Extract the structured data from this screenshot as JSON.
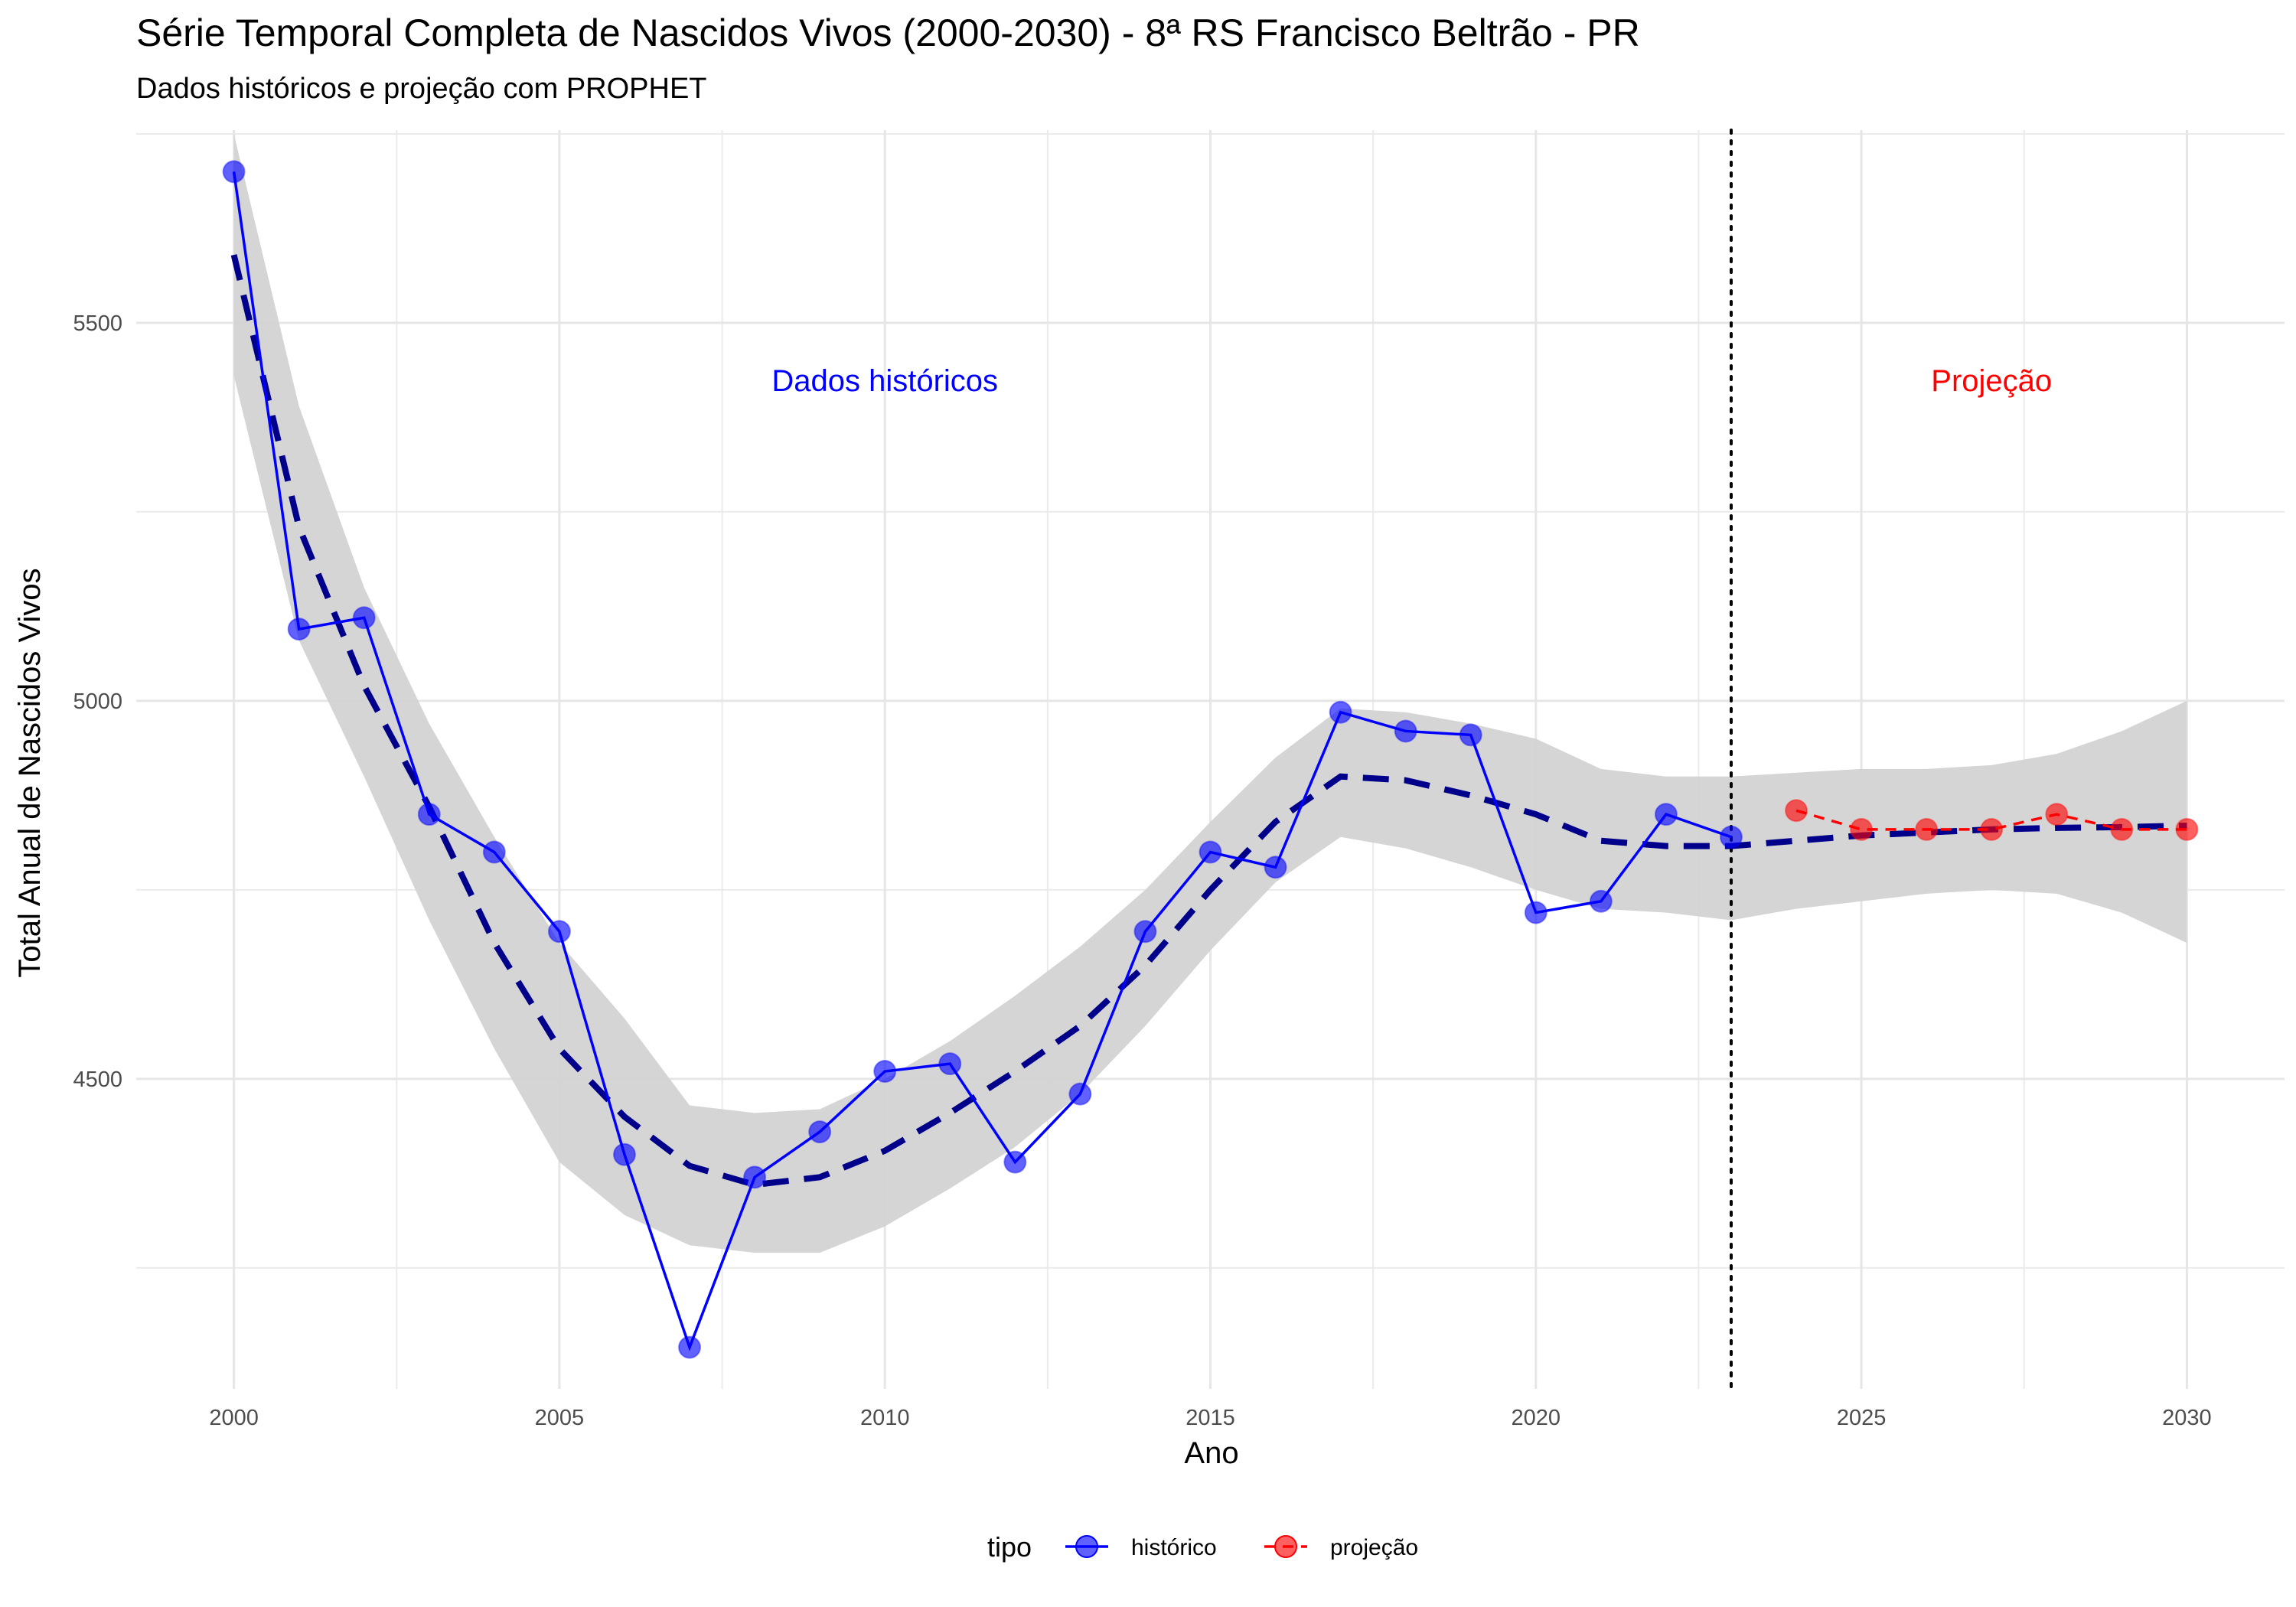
{
  "title": "Série Temporal Completa de Nascidos Vivos (2000-2030) -  8ª RS Francisco Beltrão - PR",
  "subtitle": "Dados históricos e projeção com PROPHET",
  "chart_data": {
    "type": "line",
    "title": "Série Temporal Completa de Nascidos Vivos (2000-2030) -  8ª RS Francisco Beltrão - PR",
    "subtitle": "Dados históricos e projeção com PROPHET",
    "xlabel": "Ano",
    "ylabel": "Total Anual de Nascidos Vivos",
    "xlim": [
      1998.5,
      2031.5
    ],
    "ylim": [
      4090,
      5755
    ],
    "x_ticks": [
      2000,
      2005,
      2010,
      2015,
      2020,
      2025,
      2030
    ],
    "y_ticks": [
      4500,
      5000,
      5500
    ],
    "grid": true,
    "legend": {
      "title": "tipo",
      "position": "bottom",
      "items": [
        {
          "label": "histórico",
          "color": "#0000ff"
        },
        {
          "label": "projeção",
          "color": "#ff0000"
        }
      ]
    },
    "series": [
      {
        "name": "histórico",
        "color": "#0000ff",
        "x": [
          2000,
          2001,
          2002,
          2003,
          2004,
          2005,
          2006,
          2007,
          2008,
          2009,
          2010,
          2011,
          2012,
          2013,
          2014,
          2015,
          2016,
          2017,
          2018,
          2019,
          2020,
          2021,
          2022,
          2023
        ],
        "y": [
          5700,
          5095,
          5110,
          4850,
          4800,
          4695,
          4400,
          4145,
          4370,
          4430,
          4510,
          4520,
          4390,
          4480,
          4695,
          4800,
          4780,
          4985,
          4960,
          4955,
          4720,
          4735,
          4850,
          4820
        ]
      },
      {
        "name": "projeção",
        "color": "#ff0000",
        "x": [
          2024,
          2025,
          2026,
          2027,
          2028,
          2029,
          2030
        ],
        "y": [
          4855,
          4830,
          4830,
          4830,
          4850,
          4830,
          4830
        ]
      }
    ],
    "trend": {
      "x": [
        2000,
        2001,
        2002,
        2003,
        2004,
        2005,
        2006,
        2007,
        2008,
        2009,
        2010,
        2011,
        2012,
        2013,
        2014,
        2015,
        2016,
        2017,
        2018,
        2019,
        2020,
        2021,
        2022,
        2023,
        2024,
        2025,
        2026,
        2027,
        2028,
        2029,
        2030
      ],
      "y": [
        5590,
        5230,
        5020,
        4860,
        4680,
        4540,
        4450,
        4385,
        4360,
        4370,
        4405,
        4455,
        4510,
        4570,
        4650,
        4750,
        4840,
        4900,
        4895,
        4875,
        4850,
        4815,
        4808,
        4808,
        4815,
        4822,
        4826,
        4830,
        4832,
        4833,
        4835
      ],
      "lower": [
        5430,
        5080,
        4900,
        4710,
        4540,
        4390,
        4320,
        4280,
        4270,
        4270,
        4305,
        4355,
        4410,
        4480,
        4570,
        4670,
        4760,
        4820,
        4805,
        4780,
        4750,
        4725,
        4720,
        4710,
        4725,
        4735,
        4745,
        4750,
        4745,
        4720,
        4680
      ],
      "upper": [
        5750,
        5390,
        5150,
        4970,
        4820,
        4680,
        4580,
        4465,
        4455,
        4460,
        4500,
        4550,
        4610,
        4675,
        4750,
        4840,
        4925,
        4990,
        4985,
        4970,
        4950,
        4910,
        4900,
        4900,
        4905,
        4910,
        4910,
        4915,
        4930,
        4960,
        5000
      ],
      "color": "#00008b",
      "band_color": "#d3d3d3"
    },
    "vline": {
      "x": 2023
    },
    "annotations": [
      {
        "text": "Dados históricos",
        "x": 2010,
        "y": 5410,
        "color": "#0000ff"
      },
      {
        "text": "Projeção",
        "x": 2027,
        "y": 5410,
        "color": "#ff0000"
      }
    ]
  }
}
